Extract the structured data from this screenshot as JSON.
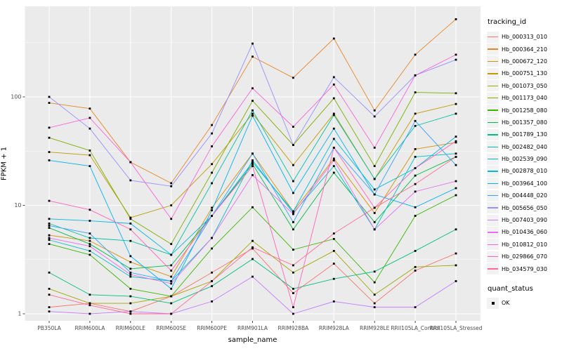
{
  "colors": {
    "panel_background": "#EBEBEB",
    "gridline": "#FFFFFF",
    "tick_mark": "#333333",
    "tick_label": "#4D4D4D",
    "point": "#000000",
    "legend_key_background": "#F2F2F2"
  },
  "chart_data": {
    "type": "line",
    "title": "",
    "xlabel": "sample_name",
    "ylabel": "FPKM + 1",
    "y_scale": "log10",
    "y_ticks": [
      1,
      10,
      100
    ],
    "y_tick_labels": [
      "1",
      "10",
      "100"
    ],
    "ylim": [
      0.87,
      680
    ],
    "grid": "major-and-minor-horizontal, major-vertical, white on gray panel",
    "legend_position": "right",
    "legend_title": "tracking_id",
    "point_legend": {
      "title": "quant_status",
      "label": "OK",
      "marker": "black-square"
    },
    "categories": [
      "PB350LA",
      "RRIM600LA",
      "RRIM600LE",
      "RRIM600SE",
      "RRIM600PE",
      "RRIM901LA",
      "RRIM928BA",
      "RRIM928LA",
      "RRIM928LE",
      "RRII105LA_Control",
      "RRII105LA_Stressed"
    ],
    "series": [
      {
        "name": "Hb_000313_010",
        "color": "#F8766D",
        "values": [
          1.15,
          1.25,
          1.05,
          1.45,
          2.4,
          4.0,
          1.55,
          2.9,
          1.25,
          2.5,
          3.6
        ]
      },
      {
        "name": "Hb_000364_210",
        "color": "#E88526",
        "values": [
          88,
          78,
          25,
          16,
          55,
          235,
          150,
          345,
          75,
          245,
          520
        ]
      },
      {
        "name": "Hb_000672_120",
        "color": "#D89000",
        "values": [
          5.3,
          4.7,
          3.0,
          2.2,
          9.5,
          30,
          8.8,
          27,
          8.5,
          33,
          38
        ]
      },
      {
        "name": "Hb_000751_130",
        "color": "#C09B00",
        "values": [
          31,
          29,
          7.7,
          10,
          24,
          70,
          23.5,
          70,
          17.5,
          70,
          86
        ]
      },
      {
        "name": "Hb_001073_050",
        "color": "#A3A500",
        "values": [
          1.7,
          1.25,
          1.25,
          1.45,
          2.0,
          4.7,
          2.4,
          3.8,
          1.5,
          2.7,
          2.8
        ]
      },
      {
        "name": "Hb_001173_040",
        "color": "#7CAE00",
        "values": [
          42,
          32,
          7.5,
          4.4,
          20,
          92,
          36,
          97,
          23,
          110,
          108
        ]
      },
      {
        "name": "Hb_001258_080",
        "color": "#39B600",
        "values": [
          4.4,
          3.5,
          1.7,
          1.45,
          4.0,
          9.6,
          3.9,
          4.9,
          1.95,
          8.0,
          12.4
        ]
      },
      {
        "name": "Hb_001357_080",
        "color": "#00BB4E",
        "values": [
          6.2,
          4.4,
          2.6,
          2.8,
          8.0,
          24,
          6.0,
          20,
          7.0,
          18.8,
          28
        ]
      },
      {
        "name": "Hb_001789_130",
        "color": "#00BF7D",
        "values": [
          2.4,
          1.5,
          1.45,
          1.25,
          1.8,
          3.2,
          1.7,
          2.1,
          2.45,
          3.8,
          6.0
        ]
      },
      {
        "name": "Hb_002482_040",
        "color": "#00C1A3",
        "values": [
          6.8,
          5.0,
          4.7,
          3.5,
          16,
          75,
          16.7,
          68,
          17.5,
          54,
          70
        ]
      },
      {
        "name": "Hb_002539_090",
        "color": "#00BFC4",
        "values": [
          4.8,
          3.8,
          2.2,
          2.0,
          5.0,
          26,
          8.5,
          23,
          6.0,
          28,
          30
        ]
      },
      {
        "name": "Hb_002878_010",
        "color": "#00BAE0",
        "values": [
          7.5,
          7.2,
          6.8,
          3.5,
          8.0,
          25,
          8.8,
          41,
          14,
          22,
          43
        ]
      },
      {
        "name": "Hb_003964_100",
        "color": "#00B0F6",
        "values": [
          26,
          23,
          3.4,
          1.7,
          9.0,
          67,
          13,
          51,
          12.6,
          9.6,
          14.4
        ]
      },
      {
        "name": "Hb_004448_020",
        "color": "#35A2FF",
        "values": [
          6.5,
          5.5,
          2.4,
          2.0,
          8.0,
          30,
          7.0,
          34,
          12.6,
          60,
          23.5
        ]
      },
      {
        "name": "Hb_005656_050",
        "color": "#9590FF",
        "values": [
          100,
          51,
          17,
          15,
          46,
          310,
          36,
          152,
          66,
          158,
          220
        ]
      },
      {
        "name": "Hb_007403_090",
        "color": "#C77CFF",
        "values": [
          1.05,
          1.0,
          1.05,
          1.0,
          1.3,
          2.2,
          1.0,
          1.3,
          1.15,
          1.15,
          2.0
        ]
      },
      {
        "name": "Hb_010436_060",
        "color": "#E76BF3",
        "values": [
          5.0,
          4.2,
          2.3,
          1.9,
          5.0,
          19,
          8.3,
          26,
          6.0,
          13.4,
          16.7
        ]
      },
      {
        "name": "Hb_010812_010",
        "color": "#FA62DB",
        "values": [
          52,
          64,
          25,
          7.5,
          35,
          120,
          53,
          130,
          34,
          158,
          245
        ]
      },
      {
        "name": "Hb_029866_070",
        "color": "#FF62BC",
        "values": [
          11,
          9.1,
          6.0,
          2.5,
          8.0,
          23,
          1.15,
          34,
          9.5,
          22,
          39
        ]
      },
      {
        "name": "Hb_034579_030",
        "color": "#FF6A98",
        "values": [
          1.5,
          1.2,
          1.0,
          1.0,
          2.0,
          4.1,
          2.8,
          5.5,
          9.5,
          15.7,
          28
        ]
      }
    ]
  }
}
